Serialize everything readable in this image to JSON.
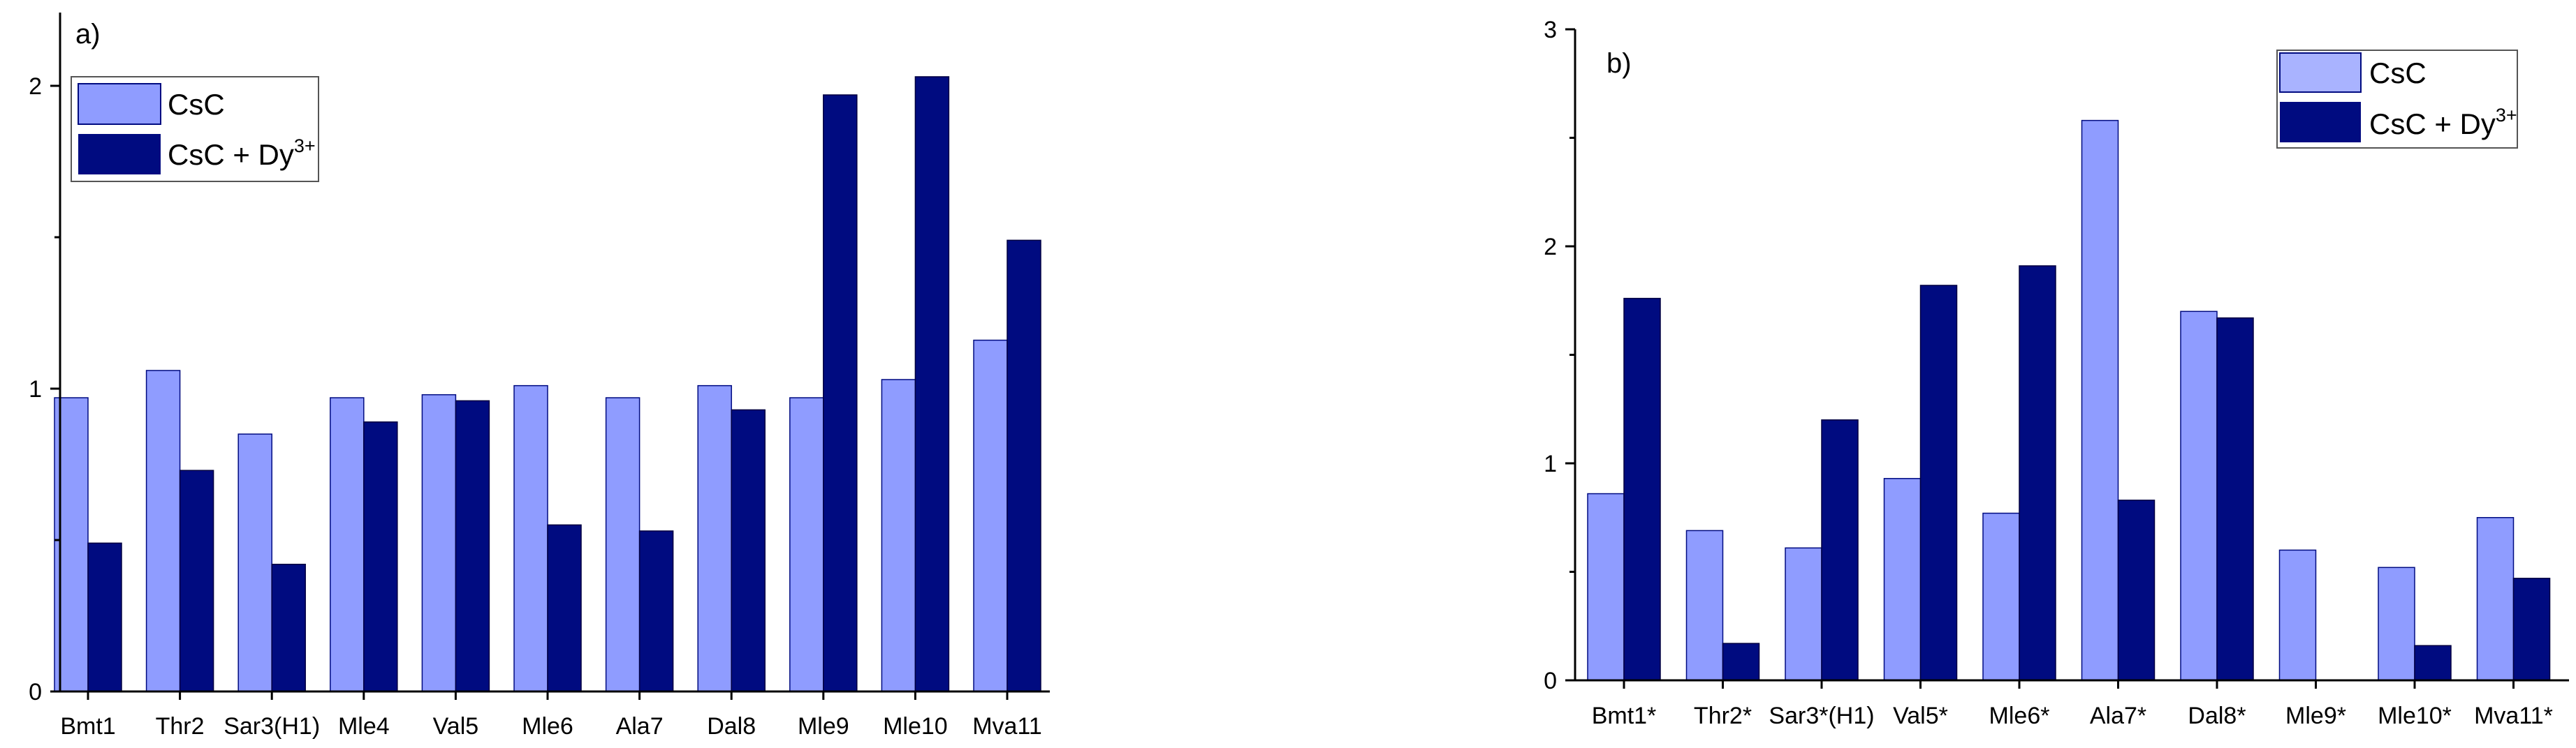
{
  "colors": {
    "series1": "#8f9cff",
    "series2": "#000b80"
  },
  "chart_data": [
    {
      "type": "bar",
      "panel_label": "a)",
      "categories": [
        "Bmt1",
        "Thr2",
        "Sar3(H1)",
        "Mle4",
        "Val5",
        "Mle6",
        "Ala7",
        "Dal8",
        "Mle9",
        "Mle10",
        "Mva11"
      ],
      "y_tick_labels": [
        "0",
        "1",
        "2"
      ],
      "ylim": [
        0,
        2.2
      ],
      "legend": {
        "placement": "top-left",
        "labels": [
          "CsC",
          "CsC + Dy",
          "3+"
        ]
      },
      "series": [
        {
          "name": "CsC",
          "values": [
            0.97,
            1.06,
            0.85,
            0.97,
            0.98,
            1.01,
            0.97,
            1.01,
            0.97,
            1.03,
            1.16
          ]
        },
        {
          "name": "CsC + Dy3+",
          "values": [
            0.49,
            0.73,
            0.42,
            0.89,
            0.96,
            0.55,
            0.53,
            0.93,
            1.97,
            2.03,
            1.49
          ]
        }
      ]
    },
    {
      "type": "bar",
      "panel_label": "b)",
      "categories": [
        "Bmt1*",
        "Thr2*",
        "Sar3*(H1)",
        "Val5*",
        "Mle6*",
        "Ala7*",
        "Dal8*",
        "Mle9*",
        "Mle10*",
        "Mva11*"
      ],
      "y_tick_labels": [
        "0",
        "1",
        "2",
        "3"
      ],
      "ylim": [
        0,
        3.0
      ],
      "legend": {
        "placement": "top-right",
        "labels": [
          "CsC",
          "CsC + Dy",
          "3+"
        ]
      },
      "series": [
        {
          "name": "CsC",
          "values": [
            0.86,
            0.69,
            0.61,
            0.93,
            0.77,
            2.58,
            1.7,
            0.6,
            0.52,
            0.75
          ]
        },
        {
          "name": "CsC + Dy3+",
          "values": [
            1.76,
            0.17,
            1.2,
            1.82,
            1.91,
            0.83,
            1.67,
            0,
            0.16,
            0.47
          ]
        }
      ]
    }
  ]
}
